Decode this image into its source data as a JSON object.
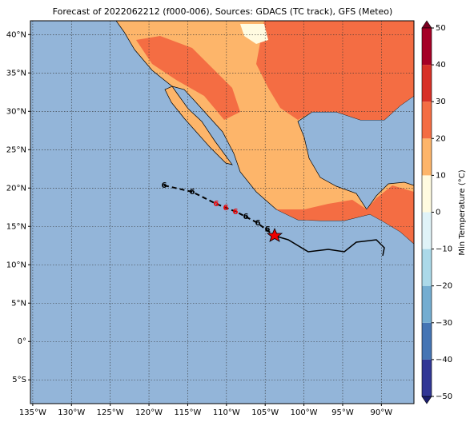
{
  "title": "Forecast of 2022062212 (f000-006), Sources: GDACS (TC track), GFS (Meteo)",
  "map": {
    "lonlim": [
      -135.3,
      -85.8
    ],
    "latlim": [
      -8.1,
      41.8
    ],
    "xticks": [
      {
        "value": -135,
        "label": "135°W"
      },
      {
        "value": -130,
        "label": "130°W"
      },
      {
        "value": -125,
        "label": "125°W"
      },
      {
        "value": -120,
        "label": "120°W"
      },
      {
        "value": -115,
        "label": "115°W"
      },
      {
        "value": -110,
        "label": "110°W"
      },
      {
        "value": -105,
        "label": "105°W"
      },
      {
        "value": -100,
        "label": "100°W"
      },
      {
        "value": -95,
        "label": "95°W"
      },
      {
        "value": -90,
        "label": "90°W"
      }
    ],
    "yticks": [
      {
        "value": -5,
        "label": "5°S"
      },
      {
        "value": 0,
        "label": "0°"
      },
      {
        "value": 5,
        "label": "5°N"
      },
      {
        "value": 10,
        "label": "10°N"
      },
      {
        "value": 15,
        "label": "15°N"
      },
      {
        "value": 20,
        "label": "20°N"
      },
      {
        "value": 25,
        "label": "25°N"
      },
      {
        "value": 30,
        "label": "30°N"
      },
      {
        "value": 35,
        "label": "35°N"
      },
      {
        "value": 40,
        "label": "40°N"
      }
    ]
  },
  "colorbar": {
    "label": "Min Temperature (°C)",
    "lim": [
      -50,
      50
    ],
    "ticks": [
      {
        "value": -50,
        "label": "−50"
      },
      {
        "value": -40,
        "label": "−40"
      },
      {
        "value": -30,
        "label": "−30"
      },
      {
        "value": -20,
        "label": "−20"
      },
      {
        "value": -10,
        "label": "−10"
      },
      0,
      10,
      20,
      30,
      40,
      50
    ],
    "colors": [
      "#313695",
      "#4575b4",
      "#74add1",
      "#abd9e9",
      "#e0f3f8",
      "#fffbe0",
      "#fdb56a",
      "#f46d43",
      "#d73027",
      "#a50026"
    ]
  }
}
